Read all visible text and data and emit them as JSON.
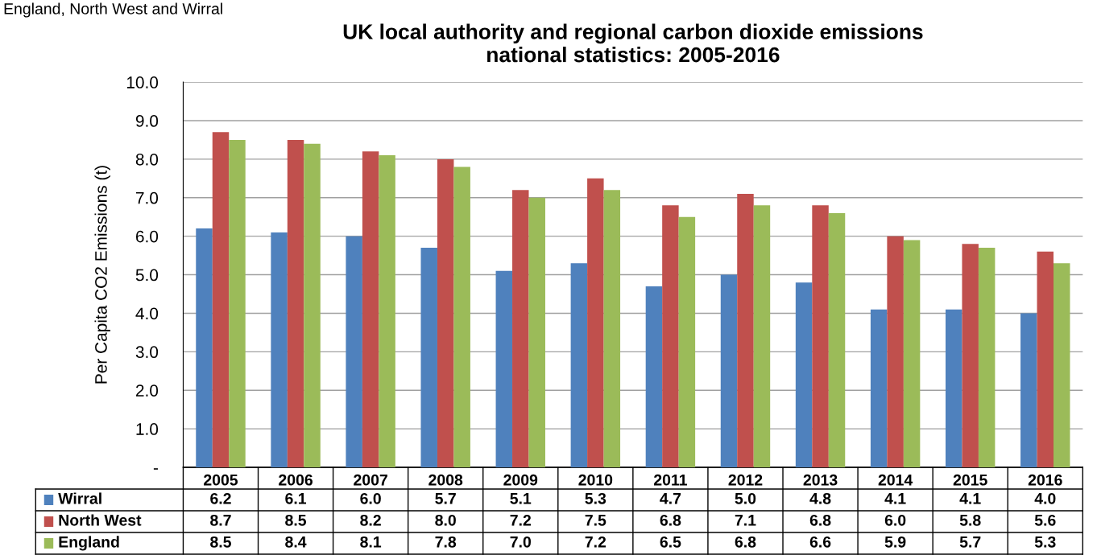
{
  "chart_data": {
    "type": "bar",
    "title": "UK local authority and regional carbon dioxide emissions\nnational statistics: 2005-2016",
    "ylabel": "Per Capita CO2 Emissions (t)",
    "annotations": [
      "England, North West and Wirral"
    ],
    "categories": [
      "2005",
      "2006",
      "2007",
      "2008",
      "2009",
      "2010",
      "2011",
      "2012",
      "2013",
      "2014",
      "2015",
      "2016"
    ],
    "series": [
      {
        "name": "Wirral",
        "color": "#4f81bd",
        "values": [
          6.2,
          6.1,
          6.0,
          5.7,
          5.1,
          5.3,
          4.7,
          5.0,
          4.8,
          4.1,
          4.1,
          4.0
        ],
        "value_labels": [
          "6.2",
          "6.1",
          "6.0",
          "5.7",
          "5.1",
          "5.3",
          "4.7",
          "5.0",
          "4.8",
          "4.1",
          "4.1",
          "4.0"
        ]
      },
      {
        "name": "North West",
        "color": "#c0504d",
        "values": [
          8.7,
          8.5,
          8.2,
          8.0,
          7.2,
          7.5,
          6.8,
          7.1,
          6.8,
          6.0,
          5.8,
          5.6
        ],
        "value_labels": [
          "8.7",
          "8.5",
          "8.2",
          "8.0",
          "7.2",
          "7.5",
          "6.8",
          "7.1",
          "6.8",
          "6.0",
          "5.8",
          "5.6"
        ]
      },
      {
        "name": "England",
        "color": "#9bbb59",
        "values": [
          8.5,
          8.4,
          8.1,
          7.8,
          7.0,
          7.2,
          6.5,
          6.8,
          6.6,
          5.9,
          5.7,
          5.3
        ],
        "value_labels": [
          "8.5",
          "8.4",
          "8.1",
          "7.8",
          "7.0",
          "7.2",
          "6.5",
          "6.8",
          "6.6",
          "5.9",
          "5.7",
          "5.3"
        ]
      }
    ],
    "ylim": [
      0,
      10
    ],
    "yticks": [
      {
        "value": 0,
        "label": "-"
      },
      {
        "value": 1,
        "label": "1.0"
      },
      {
        "value": 2,
        "label": "2.0"
      },
      {
        "value": 3,
        "label": "3.0"
      },
      {
        "value": 4,
        "label": "4.0"
      },
      {
        "value": 5,
        "label": "5.0"
      },
      {
        "value": 6,
        "label": "6.0"
      },
      {
        "value": 7,
        "label": "7.0"
      },
      {
        "value": 8,
        "label": "8.0"
      },
      {
        "value": 9,
        "label": "9.0"
      },
      {
        "value": 10,
        "label": "10.0"
      }
    ],
    "grid": "y",
    "legend": "bottom"
  }
}
